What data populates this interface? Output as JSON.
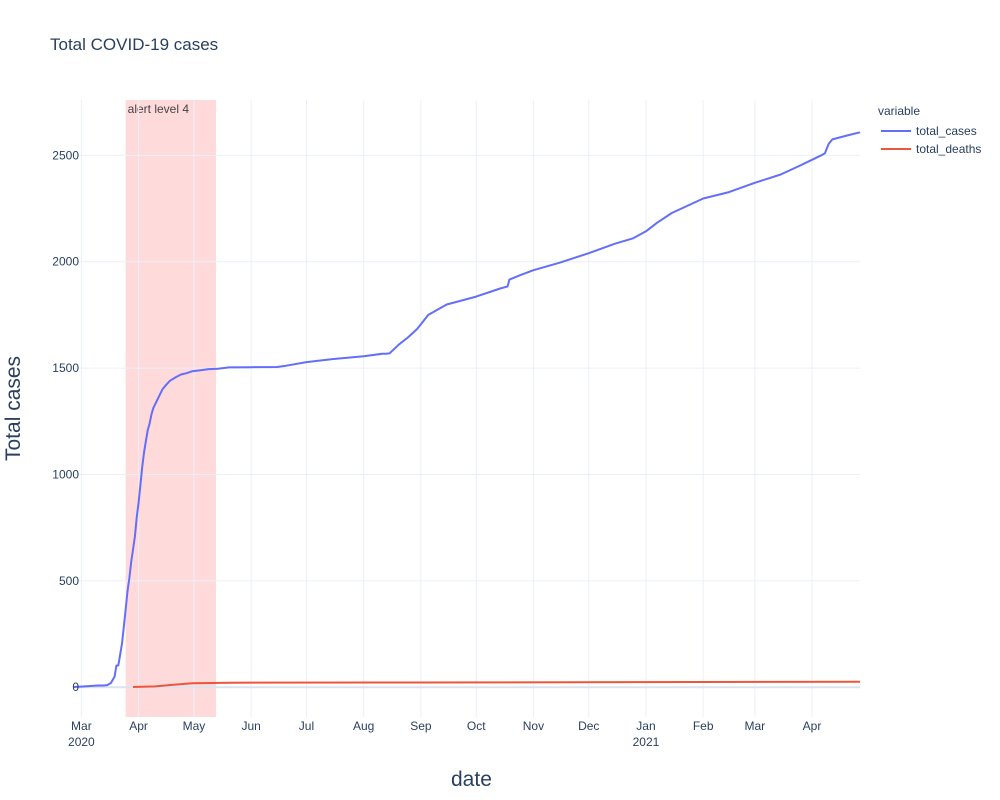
{
  "chart_data": {
    "type": "line",
    "title": "Total COVID-19 cases",
    "xlabel": "date",
    "ylabel": "Total cases",
    "xlim": [
      "2020-02-26",
      "2021-04-27"
    ],
    "ylim": [
      -140,
      2760
    ],
    "x_ticks": [
      {
        "date": "2020-03-01",
        "label": "Mar",
        "sublabel": "2020"
      },
      {
        "date": "2020-04-01",
        "label": "Apr",
        "sublabel": ""
      },
      {
        "date": "2020-05-01",
        "label": "May",
        "sublabel": ""
      },
      {
        "date": "2020-06-01",
        "label": "Jun",
        "sublabel": ""
      },
      {
        "date": "2020-07-01",
        "label": "Jul",
        "sublabel": ""
      },
      {
        "date": "2020-08-01",
        "label": "Aug",
        "sublabel": ""
      },
      {
        "date": "2020-09-01",
        "label": "Sep",
        "sublabel": ""
      },
      {
        "date": "2020-10-01",
        "label": "Oct",
        "sublabel": ""
      },
      {
        "date": "2020-11-01",
        "label": "Nov",
        "sublabel": ""
      },
      {
        "date": "2020-12-01",
        "label": "Dec",
        "sublabel": ""
      },
      {
        "date": "2021-01-01",
        "label": "Jan",
        "sublabel": "2021"
      },
      {
        "date": "2021-02-01",
        "label": "Feb",
        "sublabel": ""
      },
      {
        "date": "2021-03-01",
        "label": "Mar",
        "sublabel": ""
      },
      {
        "date": "2021-04-01",
        "label": "Apr",
        "sublabel": ""
      }
    ],
    "y_ticks": [
      0,
      500,
      1000,
      1500,
      2000,
      2500
    ],
    "grid": true,
    "legend": {
      "title": "variable",
      "placement": "right"
    },
    "shaded_region": {
      "start": "2020-03-25",
      "end": "2020-05-13",
      "label": "alert level 4",
      "color": "#ffdadb"
    },
    "series": [
      {
        "name": "total_cases",
        "color": "#636efa",
        "x": [
          "2020-02-26",
          "2020-03-05",
          "2020-03-10",
          "2020-03-13",
          "2020-03-15",
          "2020-03-17",
          "2020-03-19",
          "2020-03-20",
          "2020-03-21",
          "2020-03-22",
          "2020-03-23",
          "2020-03-24",
          "2020-03-25",
          "2020-03-26",
          "2020-03-27",
          "2020-03-28",
          "2020-03-29",
          "2020-03-30",
          "2020-03-31",
          "2020-04-01",
          "2020-04-02",
          "2020-04-03",
          "2020-04-04",
          "2020-04-05",
          "2020-04-06",
          "2020-04-07",
          "2020-04-08",
          "2020-04-09",
          "2020-04-10",
          "2020-04-12",
          "2020-04-14",
          "2020-04-16",
          "2020-04-18",
          "2020-04-21",
          "2020-04-24",
          "2020-04-27",
          "2020-04-30",
          "2020-05-04",
          "2020-05-09",
          "2020-05-14",
          "2020-05-20",
          "2020-06-01",
          "2020-06-15",
          "2020-06-20",
          "2020-07-01",
          "2020-07-15",
          "2020-08-01",
          "2020-08-11",
          "2020-08-13",
          "2020-08-15",
          "2020-08-20",
          "2020-08-25",
          "2020-08-30",
          "2020-09-05",
          "2020-09-15",
          "2020-10-01",
          "2020-10-14",
          "2020-10-18",
          "2020-10-19",
          "2020-10-25",
          "2020-11-01",
          "2020-11-15",
          "2020-12-01",
          "2020-12-15",
          "2020-12-25",
          "2021-01-01",
          "2021-01-07",
          "2021-01-15",
          "2021-02-01",
          "2021-02-15",
          "2021-03-01",
          "2021-03-15",
          "2021-03-25",
          "2021-04-01",
          "2021-04-06",
          "2021-04-08",
          "2021-04-10",
          "2021-04-12",
          "2021-04-20",
          "2021-04-27"
        ],
        "values": [
          1,
          5,
          8,
          8,
          10,
          20,
          50,
          102,
          102,
          152,
          205,
          283,
          368,
          451,
          514,
          589,
          647,
          708,
          797,
          868,
          950,
          1039,
          1106,
          1160,
          1210,
          1239,
          1283,
          1312,
          1330,
          1366,
          1401,
          1422,
          1440,
          1456,
          1470,
          1476,
          1485,
          1489,
          1495,
          1497,
          1503,
          1504,
          1505,
          1511,
          1528,
          1542,
          1556,
          1567,
          1567,
          1569,
          1610,
          1644,
          1684,
          1750,
          1799,
          1836,
          1874,
          1884,
          1916,
          1937,
          1960,
          1995,
          2040,
          2084,
          2110,
          2143,
          2183,
          2229,
          2297,
          2327,
          2371,
          2410,
          2450,
          2479,
          2500,
          2509,
          2553,
          2575,
          2593,
          2608
        ]
      },
      {
        "name": "total_deaths",
        "color": "#ef553b",
        "x": [
          "2020-03-29",
          "2020-04-10",
          "2020-04-20",
          "2020-04-30",
          "2020-05-20",
          "2020-09-01",
          "2021-04-27"
        ],
        "values": [
          1,
          4,
          12,
          19,
          21,
          22,
          26
        ]
      }
    ]
  }
}
